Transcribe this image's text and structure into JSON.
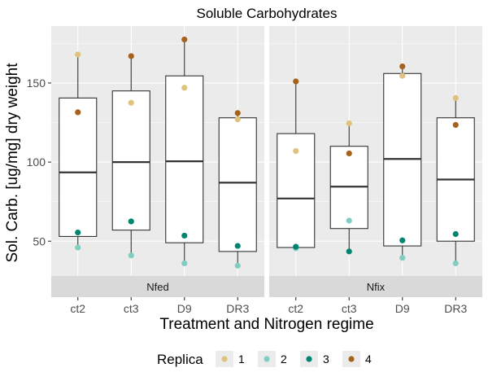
{
  "chart_data": {
    "type": "box",
    "title": "Soluble Carbohydrates",
    "xlabel": "Treatment and Nitrogen regime",
    "ylabel": "Sol. Carb. [ug/mg] dry weight",
    "ylim": [
      28,
      186
    ],
    "y_ticks": [
      50,
      100,
      150
    ],
    "categories": [
      "ct2",
      "ct3",
      "D9",
      "DR3"
    ],
    "legend": {
      "title": "Replica",
      "position": "bottom",
      "entries": [
        {
          "label": "1",
          "color": "#dfc27d"
        },
        {
          "label": "2",
          "color": "#80cdc1"
        },
        {
          "label": "3",
          "color": "#018571"
        },
        {
          "label": "4",
          "color": "#a6611a"
        }
      ]
    },
    "panels": [
      {
        "label": "Nfed",
        "boxes": [
          {
            "category": "ct2",
            "lower_whisker": 46,
            "q1": 53,
            "median": 93.5,
            "q3": 140.5,
            "upper_whisker": 168,
            "points": [
              168,
              46,
              55.5,
              131.5
            ]
          },
          {
            "category": "ct3",
            "lower_whisker": 41,
            "q1": 57,
            "median": 100,
            "q3": 145,
            "upper_whisker": 167,
            "points": [
              137.5,
              41,
              62.5,
              167
            ]
          },
          {
            "category": "D9",
            "lower_whisker": 36,
            "q1": 49,
            "median": 100.5,
            "q3": 154.5,
            "upper_whisker": 177.5,
            "points": [
              147,
              36,
              53.5,
              177.5
            ]
          },
          {
            "category": "DR3",
            "lower_whisker": 34.5,
            "q1": 43.5,
            "median": 87,
            "q3": 128,
            "upper_whisker": 131,
            "points": [
              127,
              34.5,
              47,
              131
            ]
          }
        ]
      },
      {
        "label": "Nfix",
        "boxes": [
          {
            "category": "ct2",
            "lower_whisker": 45.5,
            "q1": 46,
            "median": 77,
            "q3": 118,
            "upper_whisker": 151,
            "points": [
              107,
              45.5,
              46.5,
              151
            ]
          },
          {
            "category": "ct3",
            "lower_whisker": 43.5,
            "q1": 58,
            "median": 84.5,
            "q3": 110,
            "upper_whisker": 124.5,
            "points": [
              124.5,
              63,
              43.5,
              105.5
            ]
          },
          {
            "category": "D9",
            "lower_whisker": 39.5,
            "q1": 47,
            "median": 102,
            "q3": 156,
            "upper_whisker": 160.5,
            "points": [
              154.5,
              39.5,
              50.5,
              160.5
            ]
          },
          {
            "category": "DR3",
            "lower_whisker": 36,
            "q1": 50,
            "median": 89,
            "q3": 128,
            "upper_whisker": 140.5,
            "points": [
              140.5,
              36,
              54.5,
              123.5
            ]
          }
        ]
      }
    ]
  }
}
